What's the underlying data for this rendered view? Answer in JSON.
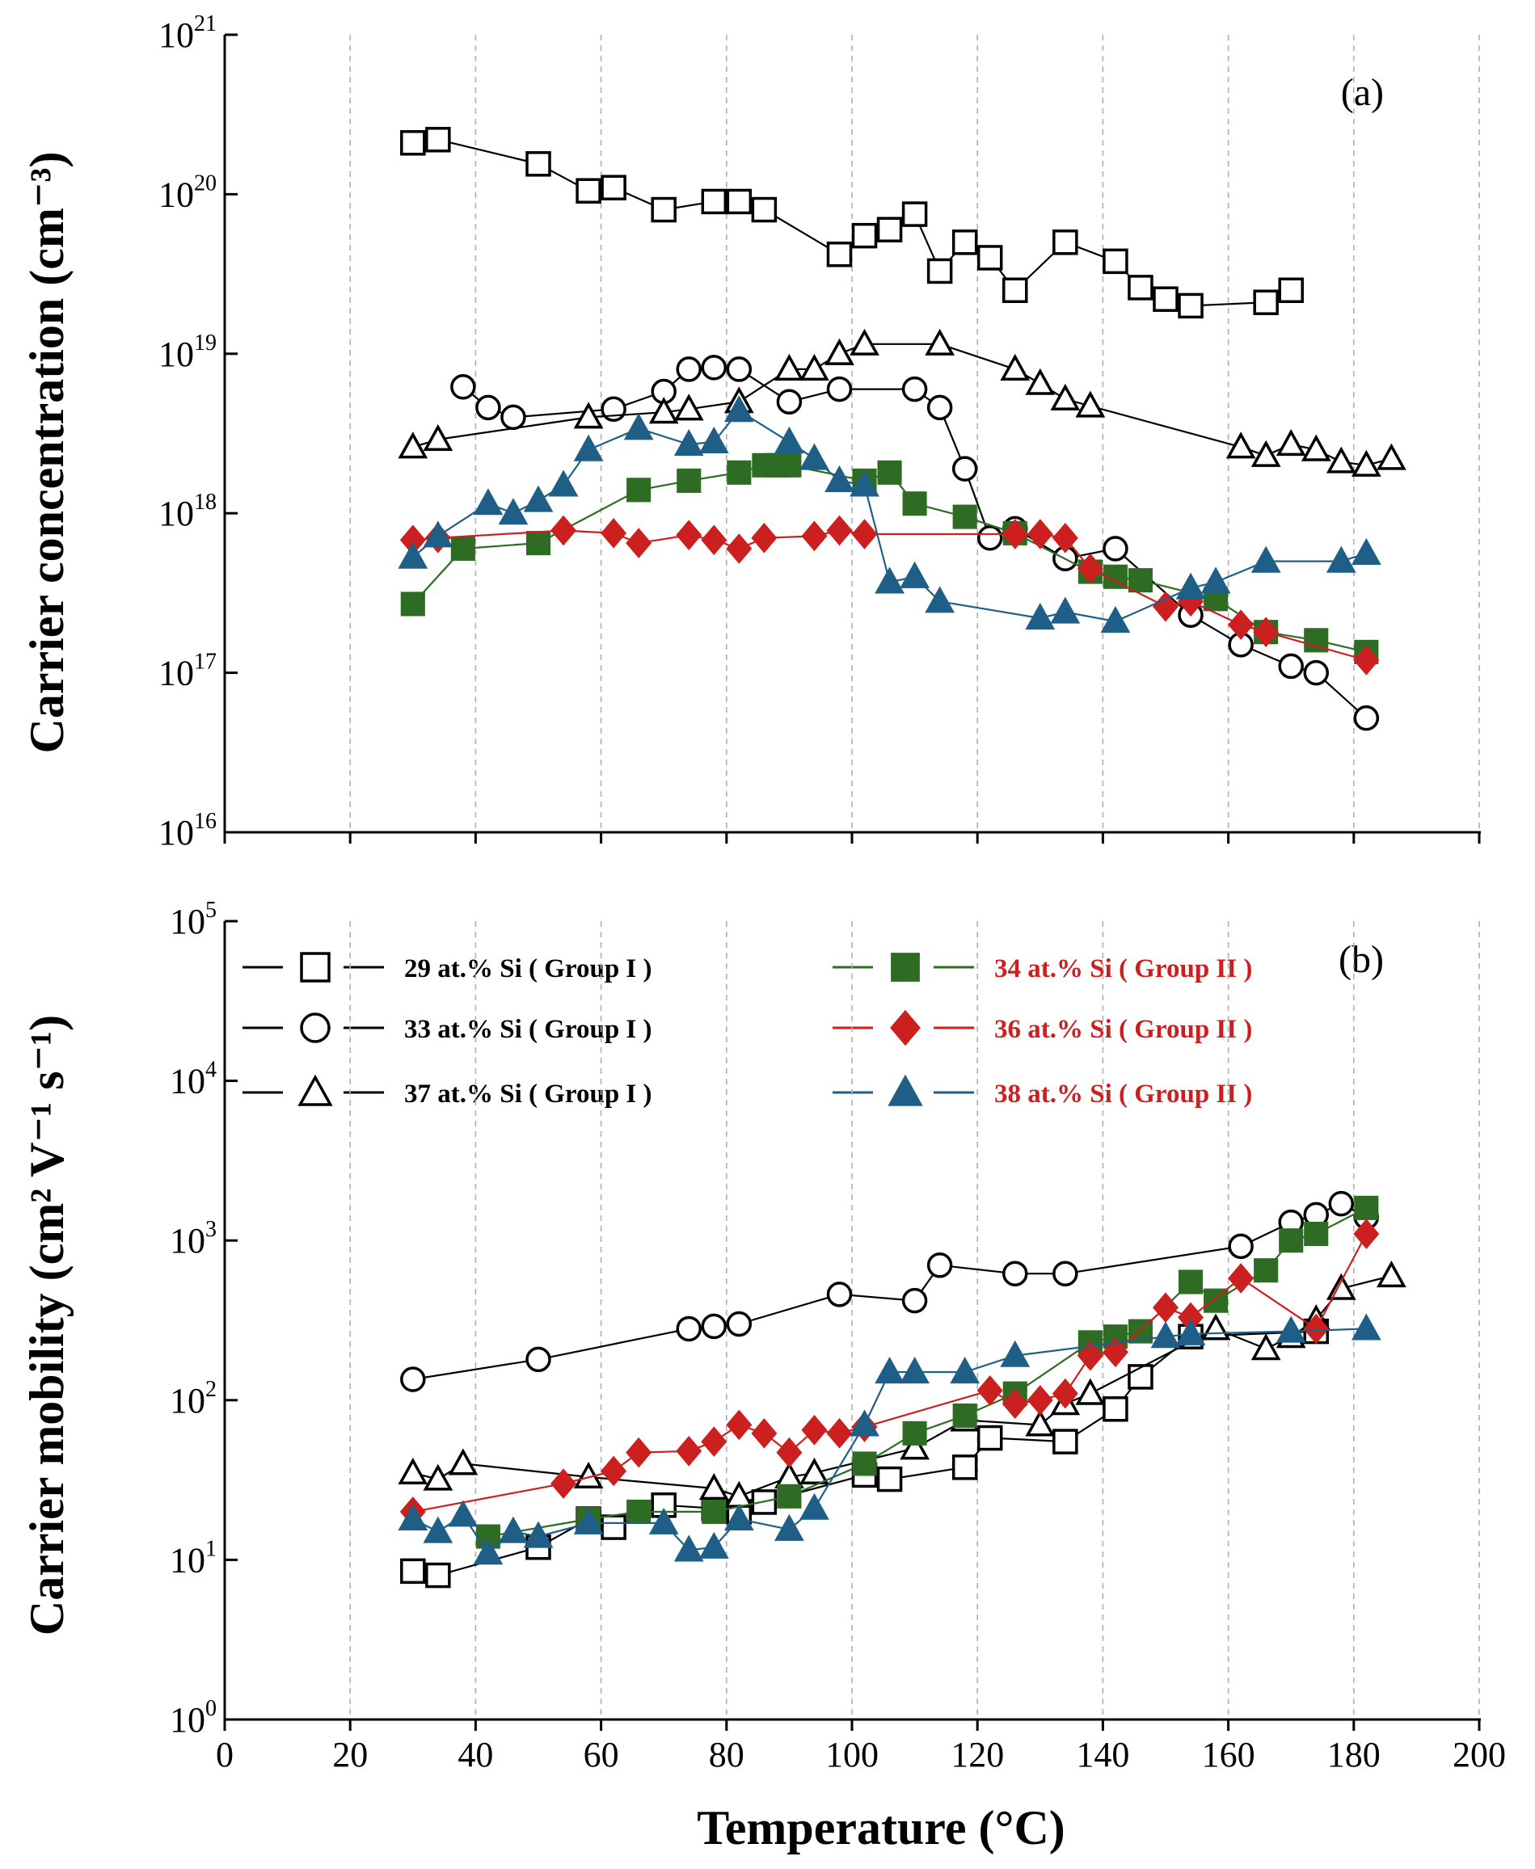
{
  "chart_data": {
    "type": "line",
    "xlabel": "Temperature (°C)",
    "xlim": [
      0,
      200
    ],
    "x_ticks": [
      "0",
      "20",
      "40",
      "60",
      "80",
      "100",
      "120",
      "140",
      "160",
      "180",
      "200"
    ],
    "panels": [
      {
        "id": "a",
        "label": "(a)",
        "ylabel": "Carrier concentration (cm⁻³)",
        "yscale": "log",
        "ylim": [
          1e+16,
          1e+21
        ],
        "y_ticks": [
          {
            "base": "10",
            "exp": "16"
          },
          {
            "base": "10",
            "exp": "17"
          },
          {
            "base": "10",
            "exp": "18"
          },
          {
            "base": "10",
            "exp": "19"
          },
          {
            "base": "10",
            "exp": "20"
          },
          {
            "base": "10",
            "exp": "21"
          }
        ],
        "series": [
          {
            "name": "29 at.% Si ( Group I )",
            "marker": "square-open",
            "color": "#000000",
            "x": [
              30,
              34,
              50,
              58,
              62,
              70,
              78,
              82,
              86,
              98,
              102,
              106,
              110,
              114,
              118,
              122,
              126,
              134,
              142,
              146,
              150,
              154,
              166,
              170
            ],
            "y": [
              2.1e+20,
              2.2e+20,
              1.55e+20,
              1.05e+20,
              1.1e+20,
              8e+19,
              9e+19,
              9e+19,
              8e+19,
              4.2e+19,
              5.5e+19,
              6e+19,
              7.5e+19,
              3.3e+19,
              5e+19,
              4e+19,
              2.5e+19,
              5e+19,
              3.8e+19,
              2.6e+19,
              2.2e+19,
              2e+19,
              2.1e+19,
              2.5e+19
            ]
          },
          {
            "name": "33 at.% Si ( Group I )",
            "marker": "circle-open",
            "color": "#000000",
            "x": [
              38,
              42,
              46,
              62,
              70,
              74,
              78,
              82,
              90,
              98,
              110,
              114,
              118,
              122,
              126,
              134,
              142,
              154,
              162,
              170,
              174,
              182
            ],
            "y": [
              6.2e+18,
              4.6e+18,
              4e+18,
              4.5e+18,
              5.8e+18,
              8e+18,
              8.2e+18,
              8e+18,
              5e+18,
              6e+18,
              6e+18,
              4.6e+18,
              1.9e+18,
              7e+17,
              8e+17,
              5.2e+17,
              6e+17,
              2.3e+17,
              1.5e+17,
              1.1e+17,
              1e+17,
              5.2e+16
            ]
          },
          {
            "name": "37 at.% Si ( Group I )",
            "marker": "triangle-open",
            "color": "#000000",
            "x": [
              30,
              34,
              58,
              70,
              74,
              82,
              90,
              94,
              98,
              102,
              114,
              126,
              130,
              134,
              138,
              162,
              166,
              170,
              174,
              178,
              182,
              186
            ],
            "y": [
              2.6e+18,
              2.9e+18,
              4e+18,
              4.3e+18,
              4.5e+18,
              5e+18,
              8e+18,
              8e+18,
              1e+19,
              1.15e+19,
              1.15e+19,
              8e+18,
              6.5e+18,
              5.2e+18,
              4.7e+18,
              2.6e+18,
              2.3e+18,
              2.7e+18,
              2.5e+18,
              2.1e+18,
              2e+18,
              2.2e+18
            ]
          },
          {
            "name": "34 at.% Si ( Group II )",
            "marker": "square-filled",
            "color": "#2e6b23",
            "x": [
              30,
              38,
              50,
              66,
              74,
              82,
              86,
              88,
              90,
              102,
              106,
              110,
              118,
              126,
              138,
              142,
              146,
              158,
              166,
              174,
              182
            ],
            "y": [
              2.7e+17,
              6e+17,
              6.5e+17,
              1.4e+18,
              1.6e+18,
              1.8e+18,
              2e+18,
              2e+18,
              2e+18,
              1.6e+18,
              1.8e+18,
              1.15e+18,
              9.5e+17,
              7.5e+17,
              4.3e+17,
              4e+17,
              3.8e+17,
              2.9e+17,
              1.8e+17,
              1.6e+17,
              1.35e+17
            ]
          },
          {
            "name": "36 at.% Si ( Group II )",
            "marker": "diamond-filled",
            "color": "#cc1f1f",
            "x": [
              30,
              34,
              54,
              62,
              66,
              74,
              78,
              82,
              86,
              94,
              98,
              102,
              126,
              130,
              134,
              138,
              150,
              154,
              162,
              166,
              182
            ],
            "y": [
              6.8e+17,
              7e+17,
              7.8e+17,
              7.5e+17,
              6.5e+17,
              7.3e+17,
              6.8e+17,
              6e+17,
              7e+17,
              7.2e+17,
              7.8e+17,
              7.4e+17,
              7.4e+17,
              7.4e+17,
              7e+17,
              4.5e+17,
              2.6e+17,
              2.8e+17,
              2e+17,
              1.8e+17,
              1.2e+17
            ]
          },
          {
            "name": "38 at.% Si ( Group II )",
            "marker": "triangle-filled",
            "color": "#1f5f87",
            "x": [
              30,
              34,
              42,
              46,
              50,
              54,
              58,
              66,
              74,
              78,
              82,
              90,
              94,
              98,
              102,
              106,
              110,
              114,
              130,
              134,
              142,
              154,
              158,
              166,
              178,
              182
            ],
            "y": [
              5.3e+17,
              7.2e+17,
              1.15e+18,
              1e+18,
              1.2e+18,
              1.5e+18,
              2.5e+18,
              3.4e+18,
              2.7e+18,
              2.8e+18,
              4.4e+18,
              2.8e+18,
              2.2e+18,
              1.6e+18,
              1.5e+18,
              3.7e+17,
              4e+17,
              2.8e+17,
              2.2e+17,
              2.4e+17,
              2.1e+17,
              3.4e+17,
              3.7e+17,
              5e+17,
              5e+17,
              5.6e+17
            ]
          }
        ]
      },
      {
        "id": "b",
        "label": "(b)",
        "ylabel": "Carrier mobility (cm² V⁻¹ s⁻¹)",
        "yscale": "log",
        "ylim": [
          1,
          100000
        ],
        "y_ticks": [
          {
            "base": "10",
            "exp": "0"
          },
          {
            "base": "10",
            "exp": "1"
          },
          {
            "base": "10",
            "exp": "2"
          },
          {
            "base": "10",
            "exp": "3"
          },
          {
            "base": "10",
            "exp": "4"
          },
          {
            "base": "10",
            "exp": "5"
          }
        ],
        "series": [
          {
            "name": "29 at.% Si ( Group I )",
            "marker": "square-open",
            "color": "#000000",
            "x": [
              30,
              34,
              50,
              58,
              62,
              70,
              78,
              82,
              86,
              102,
              106,
              118,
              122,
              134,
              142,
              146,
              154,
              174
            ],
            "y": [
              8.5,
              8,
              12,
              18,
              16,
              22,
              21,
              20,
              23,
              34,
              32,
              38,
              58,
              55,
              88,
              140,
              250,
              270
            ]
          },
          {
            "name": "33 at.% Si ( Group I )",
            "marker": "circle-open",
            "color": "#000000",
            "x": [
              30,
              50,
              74,
              78,
              82,
              98,
              110,
              114,
              126,
              134,
              162,
              170,
              174,
              178,
              182
            ],
            "y": [
              135,
              180,
              280,
              290,
              300,
              460,
              420,
              700,
              620,
              620,
              920,
              1300,
              1450,
              1700,
              1400
            ]
          },
          {
            "name": "37 at.% Si ( Group I )",
            "marker": "triangle-open",
            "color": "#000000",
            "x": [
              30,
              34,
              38,
              58,
              78,
              82,
              90,
              94,
              110,
              118,
              130,
              134,
              138,
              158,
              166,
              170,
              174,
              178,
              186
            ],
            "y": [
              35,
              32,
              40,
              33,
              28,
              25,
              33,
              35,
              50,
              75,
              70,
              95,
              110,
              280,
              210,
              250,
              320,
              500,
              600
            ]
          },
          {
            "name": "34 at.% Si ( Group II )",
            "marker": "square-filled",
            "color": "#2e6b23",
            "x": [
              42,
              58,
              66,
              78,
              90,
              102,
              110,
              118,
              126,
              138,
              142,
              146,
              154,
              158,
              166,
              170,
              174,
              182
            ],
            "y": [
              14,
              18,
              20,
              20,
              25,
              40,
              62,
              80,
              110,
              230,
              250,
              270,
              550,
              420,
              650,
              1000,
              1100,
              1600
            ]
          },
          {
            "name": "36 at.% Si ( Group II )",
            "marker": "diamond-filled",
            "color": "#cc1f1f",
            "x": [
              30,
              54,
              62,
              66,
              74,
              78,
              82,
              86,
              90,
              94,
              98,
              102,
              122,
              126,
              130,
              134,
              138,
              142,
              150,
              154,
              162,
              174,
              182
            ],
            "y": [
              20,
              30,
              36,
              47,
              48,
              55,
              70,
              62,
              47,
              65,
              62,
              68,
              115,
              95,
              100,
              110,
              190,
              200,
              380,
              330,
              580,
              280,
              1100
            ]
          },
          {
            "name": "38 at.% Si ( Group II )",
            "marker": "triangle-filled",
            "color": "#1f5f87",
            "x": [
              30,
              34,
              38,
              42,
              46,
              50,
              58,
              70,
              74,
              78,
              82,
              90,
              94,
              102,
              106,
              110,
              118,
              126,
              150,
              154,
              170,
              182
            ],
            "y": [
              18,
              15,
              19,
              11,
              15,
              14,
              17,
              17,
              11.5,
              12,
              18,
              15.5,
              21,
              70,
              150,
              150,
              150,
              190,
              250,
              260,
              270,
              280
            ]
          }
        ]
      }
    ],
    "legend": [
      {
        "name": "29 at.% Si ( Group I )",
        "color": "#000000",
        "text_color": "#000000",
        "marker": "square-open"
      },
      {
        "name": "33 at.% Si ( Group I )",
        "color": "#000000",
        "text_color": "#000000",
        "marker": "circle-open"
      },
      {
        "name": "37 at.% Si ( Group I )",
        "color": "#000000",
        "text_color": "#000000",
        "marker": "triangle-open"
      },
      {
        "name": "34 at.% Si ( Group II )",
        "color": "#2e6b23",
        "text_color": "#cc1f1f",
        "marker": "square-filled"
      },
      {
        "name": "36 at.% Si ( Group II )",
        "color": "#cc1f1f",
        "text_color": "#cc1f1f",
        "marker": "diamond-filled"
      },
      {
        "name": "38 at.% Si ( Group II )",
        "color": "#1f5f87",
        "text_color": "#cc1f1f",
        "marker": "triangle-filled"
      }
    ]
  }
}
